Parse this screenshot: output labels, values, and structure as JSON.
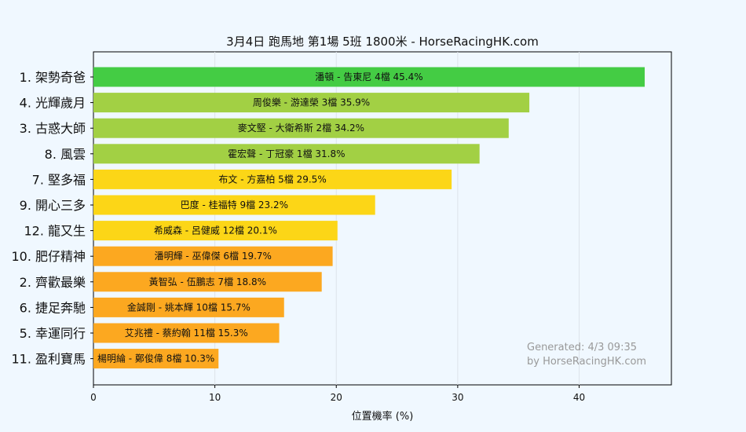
{
  "chart_data": {
    "type": "bar",
    "orientation": "horizontal",
    "title": "3月4日  跑馬地  第1場  5班  1800米 - HorseRacingHK.com",
    "xlabel": "位置機率 (%)",
    "ylabel": "",
    "xlim": [
      0,
      47.6
    ],
    "xticks": [
      "0",
      "10",
      "20",
      "30",
      "40"
    ],
    "grid": "vertical",
    "categories": [
      "1. 架勢奇爸",
      "4. 光輝歲月",
      "3. 古惑大師",
      "8. 風雲",
      "7. 堅多福",
      "9. 開心三多",
      "12. 龍又生",
      "10. 肥仔精神",
      "2. 齊歡最樂",
      "6. 捷足奔馳",
      "5. 幸運同行",
      "11. 盈利寶馬"
    ],
    "values": [
      45.4,
      35.9,
      34.2,
      31.8,
      29.5,
      23.2,
      20.1,
      19.7,
      18.8,
      15.7,
      15.3,
      10.3
    ],
    "bar_labels": [
      "潘頓 - 告東尼 4檔  45.4%",
      "周俊樂 - 游達榮 3檔  35.9%",
      "麥文堅 - 大衛希斯 2檔  34.2%",
      "霍宏聲 - 丁冠豪 1檔  31.8%",
      "布文 - 方嘉柏 5檔  29.5%",
      "巴度 - 桂福特 9檔  23.2%",
      "希威森 - 呂健威 12檔  20.1%",
      "潘明輝 - 巫偉傑 6檔  19.7%",
      "黃智弘 - 伍鵬志 7檔  18.8%",
      "金誠剛 - 姚本輝 10檔  15.7%",
      "艾兆禮 - 蔡約翰 11檔  15.3%",
      "楊明綸 - 鄭俊偉 8檔  10.3%"
    ],
    "bar_colors": [
      "#44cc44",
      "#a2d044",
      "#a2d044",
      "#a2d044",
      "#fcd617",
      "#fcd617",
      "#fcd617",
      "#fca820",
      "#fca820",
      "#fca820",
      "#fca820",
      "#fca820"
    ],
    "annotations": [
      "Generated: 4/3 09:35",
      "by HorseRacingHK.com"
    ]
  }
}
